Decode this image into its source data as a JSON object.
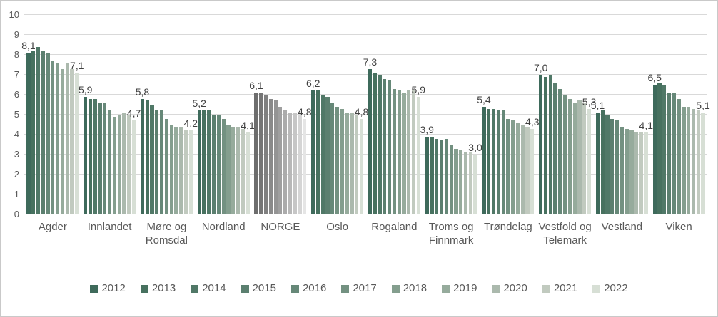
{
  "chart_data": {
    "type": "bar",
    "title": "",
    "xlabel": "",
    "ylabel": "",
    "ylim": [
      0,
      10
    ],
    "yticks": [
      0,
      1,
      2,
      3,
      4,
      5,
      6,
      7,
      8,
      9,
      10
    ],
    "grid": true,
    "legend_position": "bottom",
    "decimal_separator": ",",
    "value_labels_on": [
      "first",
      "last"
    ],
    "years": [
      "2012",
      "2013",
      "2014",
      "2015",
      "2016",
      "2017",
      "2018",
      "2019",
      "2020",
      "2021",
      "2022"
    ],
    "categories": [
      "Agder",
      "Innlandet",
      "Møre og Romsdal",
      "Nordland",
      "NORGE",
      "Oslo",
      "Rogaland",
      "Troms og Finnmark",
      "Trøndelag",
      "Vestfold og Telemark",
      "Vestland",
      "Viken"
    ],
    "series": [
      {
        "name": "Agder",
        "palette": "green",
        "values": [
          8.1,
          8.2,
          8.4,
          8.2,
          8.1,
          7.7,
          7.6,
          7.3,
          7.6,
          7.3,
          7.1
        ],
        "first_label": "8,1",
        "last_label": "7,1"
      },
      {
        "name": "Innlandet",
        "palette": "green",
        "values": [
          5.9,
          5.8,
          5.8,
          5.6,
          5.6,
          5.2,
          4.9,
          5.0,
          5.1,
          5.0,
          4.7
        ],
        "first_label": "5,9",
        "last_label": "4,7"
      },
      {
        "name": "Møre og Romsdal",
        "palette": "green",
        "values": [
          5.8,
          5.7,
          5.5,
          5.2,
          5.2,
          4.8,
          4.5,
          4.4,
          4.4,
          4.2,
          4.2
        ],
        "first_label": "5,8",
        "last_label": "4,2"
      },
      {
        "name": "Nordland",
        "palette": "green",
        "values": [
          5.2,
          5.2,
          5.2,
          5.0,
          5.0,
          4.8,
          4.5,
          4.4,
          4.4,
          4.3,
          4.1
        ],
        "first_label": "5,2",
        "last_label": "4,1"
      },
      {
        "name": "NORGE",
        "palette": "gray",
        "values": [
          6.1,
          6.1,
          6.0,
          5.8,
          5.7,
          5.4,
          5.2,
          5.1,
          5.1,
          5.0,
          4.8
        ],
        "first_label": "6,1",
        "last_label": "4,8"
      },
      {
        "name": "Oslo",
        "palette": "green",
        "values": [
          6.2,
          6.2,
          6.0,
          5.9,
          5.6,
          5.4,
          5.3,
          5.1,
          5.1,
          5.0,
          4.8
        ],
        "first_label": "6,2",
        "last_label": "4,8"
      },
      {
        "name": "Rogaland",
        "palette": "green",
        "values": [
          7.3,
          7.1,
          7.0,
          6.8,
          6.7,
          6.3,
          6.2,
          6.1,
          6.2,
          6.2,
          5.9
        ],
        "first_label": "7,3",
        "last_label": "5,9"
      },
      {
        "name": "Troms og Finnmark",
        "palette": "green",
        "values": [
          3.9,
          3.9,
          3.8,
          3.7,
          3.8,
          3.5,
          3.3,
          3.2,
          3.1,
          3.1,
          3.0
        ],
        "first_label": "3,9",
        "last_label": "3,0"
      },
      {
        "name": "Trøndelag",
        "palette": "green",
        "values": [
          5.4,
          5.3,
          5.3,
          5.2,
          5.2,
          4.8,
          4.7,
          4.6,
          4.5,
          4.4,
          4.3
        ],
        "first_label": "5,4",
        "last_label": "4,3"
      },
      {
        "name": "Vestfold og Telemark",
        "palette": "green",
        "values": [
          7.0,
          6.9,
          7.0,
          6.6,
          6.3,
          6.0,
          5.8,
          5.6,
          5.7,
          5.6,
          5.3
        ],
        "first_label": "7,0",
        "last_label": "5,3"
      },
      {
        "name": "Vestland",
        "palette": "green",
        "values": [
          5.1,
          5.2,
          5.0,
          4.8,
          4.7,
          4.4,
          4.3,
          4.2,
          4.1,
          4.1,
          4.1
        ],
        "first_label": "5,1",
        "last_label": "4,1"
      },
      {
        "name": "Viken",
        "palette": "green",
        "values": [
          6.5,
          6.6,
          6.5,
          6.1,
          6.1,
          5.8,
          5.4,
          5.4,
          5.3,
          5.2,
          5.1
        ],
        "first_label": "6,5",
        "last_label": "5,1"
      }
    ]
  },
  "colors": {
    "green_palette": [
      "#3e6a5b",
      "#47715f",
      "#507867",
      "#5b7f6f",
      "#668878",
      "#739181",
      "#849e8e",
      "#96ab9c",
      "#abb9ad",
      "#c1cabf",
      "#d7dfd5"
    ],
    "gray_palette": [
      "#6d6d6d",
      "#767676",
      "#808080",
      "#8a8a8a",
      "#949494",
      "#9f9f9f",
      "#ababab",
      "#b8b8b8",
      "#c6c6c6",
      "#d5d5d5",
      "#e5e5e5"
    ],
    "gridline": "#d9d9d9",
    "axis_line": "#a6a6a6",
    "tick_text": "#595959",
    "category_text": "#595959",
    "data_label_text": "#404040",
    "legend_text": "#595959",
    "background": "#ffffff",
    "border": "#c9c9c9"
  }
}
